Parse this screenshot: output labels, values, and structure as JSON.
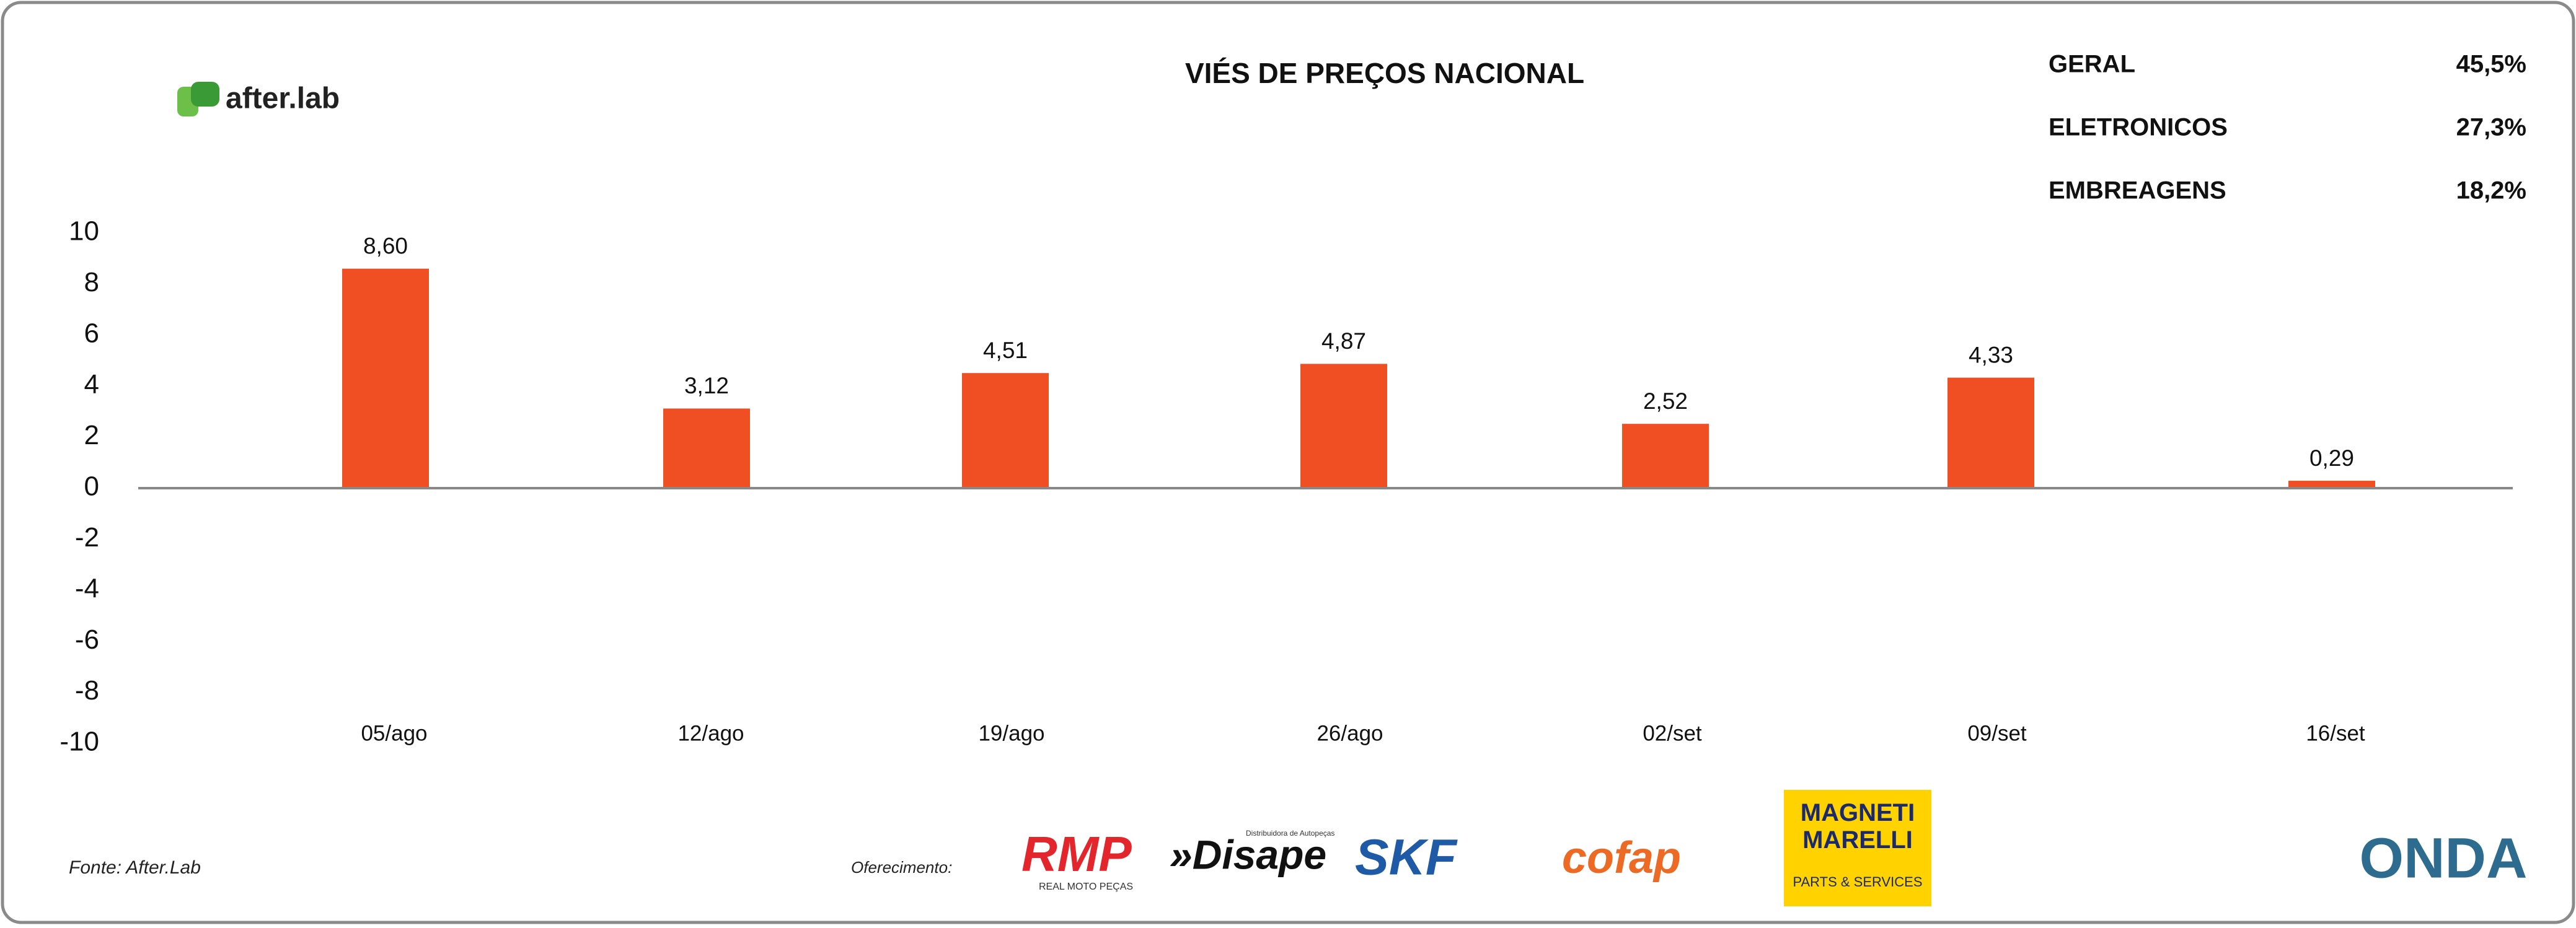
{
  "chart_data": {
    "type": "bar",
    "title": "VIÉS DE PREÇOS NACIONAL",
    "categories": [
      "05/ago",
      "12/ago",
      "19/ago",
      "26/ago",
      "02/set",
      "09/set",
      "16/set"
    ],
    "values": [
      8.6,
      3.12,
      4.51,
      4.87,
      2.52,
      4.33,
      0.29
    ],
    "value_labels": [
      "8,60",
      "3,12",
      "4,51",
      "4,87",
      "2,52",
      "4,33",
      "0,29"
    ],
    "color": "#f04e23",
    "ylim": [
      -10,
      10
    ],
    "yticks": [
      -10,
      -8,
      -6,
      -4,
      -2,
      0,
      2,
      4,
      6,
      8,
      10
    ],
    "grid": false
  },
  "stats": [
    {
      "label": "GERAL",
      "value": "45,5%"
    },
    {
      "label": "ELETRONICOS",
      "value": "27,3%"
    },
    {
      "label": "EMBREAGENS",
      "value": "18,2%"
    }
  ],
  "brand": "after.lab",
  "footer": {
    "source": "Fonte: After.Lab",
    "sponsor_intro": "Oferecimento:",
    "rmp": "RMP",
    "rmp_sub": "REAL MOTO PEÇAS",
    "disape": "»Disape",
    "disape_sub": "Distribuidora de Autopeças",
    "skf": "SKF",
    "cofap": "cofap",
    "magneti": "MAGNETI MARELLI",
    "magneti_sub": "PARTS & SERVICES",
    "onda": "ONDA"
  }
}
